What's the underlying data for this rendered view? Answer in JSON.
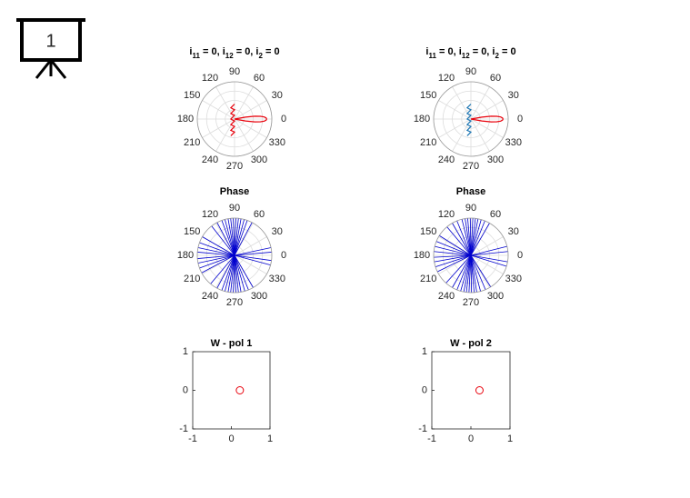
{
  "slide_number": "1",
  "chart_data": [
    {
      "type": "polar",
      "title": [
        "i",
        "11",
        " = 0, i",
        "12",
        " = 0, i",
        "2",
        " = 0"
      ],
      "rlim": [
        0,
        1
      ],
      "rticks": [
        0.25,
        0.5,
        0.75,
        1
      ],
      "thetaticks": [
        0,
        30,
        60,
        90,
        120,
        150,
        180,
        210,
        240,
        270,
        300,
        330
      ],
      "series": [
        {
          "color": "#e8000b",
          "theta": [
            340,
            350,
            352,
            354,
            356,
            358,
            0,
            2,
            4,
            6,
            8,
            10,
            20
          ],
          "r": [
            0,
            0.3,
            0.55,
            0.7,
            0.8,
            0.85,
            0.86,
            0.85,
            0.8,
            0.7,
            0.55,
            0.3,
            0
          ]
        },
        {
          "color": "#e8000b",
          "theta": [
            257.5,
            270,
            251.6,
            270,
            236.3,
            270,
            180,
            90,
            123.7,
            90,
            108.4,
            90
          ],
          "r": [
            0.46,
            0.35,
            0.32,
            0.2,
            0.18,
            0.05,
            0.1,
            0.1,
            0.18,
            0.25,
            0.32,
            0.4
          ]
        }
      ]
    },
    {
      "type": "polar",
      "title": [
        "i",
        "11",
        " = 0, i",
        "12",
        " = 0, i",
        "2",
        " = 0"
      ],
      "rlim": [
        0,
        1
      ],
      "rticks": [
        0.25,
        0.5,
        0.75,
        1
      ],
      "thetaticks": [
        0,
        30,
        60,
        90,
        120,
        150,
        180,
        210,
        240,
        270,
        300,
        330
      ],
      "series": [
        {
          "color": "#e8000b",
          "theta": [
            340,
            350,
            352,
            354,
            356,
            358,
            0,
            2,
            4,
            6,
            8,
            10,
            20
          ],
          "r": [
            0,
            0.3,
            0.55,
            0.7,
            0.8,
            0.85,
            0.86,
            0.85,
            0.8,
            0.7,
            0.55,
            0.3,
            0
          ]
        },
        {
          "color": "#1f77b4",
          "theta": [
            257.5,
            270,
            251.6,
            270,
            236.3,
            270,
            180,
            90,
            123.7,
            90,
            108.4,
            90
          ],
          "r": [
            0.46,
            0.35,
            0.32,
            0.2,
            0.18,
            0.05,
            0.1,
            0.1,
            0.18,
            0.25,
            0.32,
            0.4
          ]
        }
      ]
    },
    {
      "type": "polar-lines",
      "title": "Phase",
      "rlim": [
        0,
        1
      ],
      "rticks": [
        0.25,
        0.5,
        0.75,
        1
      ],
      "thetaticks": [
        0,
        30,
        60,
        90,
        120,
        150,
        180,
        210,
        240,
        270,
        300,
        330
      ],
      "series": [
        {
          "color": "#0000cd",
          "theta": [
            62,
            70,
            75,
            80,
            84,
            88,
            92,
            96,
            100,
            105,
            110,
            118,
            128,
            150,
            160,
            168,
            175,
            185,
            192,
            200,
            208,
            230,
            242,
            250,
            255,
            260,
            264,
            268,
            272,
            276,
            280,
            286,
            292,
            300,
            345,
            352,
            5,
            12
          ],
          "r": [
            1,
            1,
            1,
            1,
            1,
            1,
            1,
            1,
            1,
            1,
            1,
            1,
            1,
            1,
            1,
            1,
            1,
            1,
            1,
            1,
            1,
            1,
            1,
            1,
            1,
            1,
            1,
            1,
            1,
            1,
            1,
            1,
            1,
            1,
            1,
            1,
            1,
            1
          ]
        }
      ]
    },
    {
      "type": "polar-lines",
      "title": "Phase",
      "rlim": [
        0,
        1
      ],
      "rticks": [
        0.25,
        0.5,
        0.75,
        1
      ],
      "thetaticks": [
        0,
        30,
        60,
        90,
        120,
        150,
        180,
        210,
        240,
        270,
        300,
        330
      ],
      "series": [
        {
          "color": "#0000cd",
          "theta": [
            60,
            68,
            74,
            79,
            83,
            87,
            91,
            95,
            99,
            104,
            112,
            120,
            130,
            148,
            158,
            166,
            174,
            183,
            190,
            198,
            206,
            228,
            240,
            248,
            254,
            259,
            263,
            267,
            271,
            275,
            279,
            285,
            293,
            302,
            343,
            350,
            6,
            14
          ],
          "r": [
            1,
            1,
            1,
            1,
            1,
            1,
            1,
            1,
            1,
            1,
            1,
            1,
            1,
            1,
            1,
            1,
            1,
            1,
            1,
            1,
            1,
            1,
            1,
            1,
            1,
            1,
            1,
            1,
            1,
            1,
            1,
            1,
            1,
            1,
            1,
            1,
            1,
            1
          ]
        }
      ]
    },
    {
      "type": "scatter",
      "title": "W - pol 1",
      "xlim": [
        -1,
        1
      ],
      "ylim": [
        -1,
        1
      ],
      "xticks": [
        -1,
        0,
        1
      ],
      "yticks": [
        -1,
        0,
        1
      ],
      "series": [
        {
          "color": "#e8000b",
          "x": [
            0.22
          ],
          "y": [
            0
          ]
        }
      ]
    },
    {
      "type": "scatter",
      "title": "W - pol 2",
      "xlim": [
        -1,
        1
      ],
      "ylim": [
        -1,
        1
      ],
      "xticks": [
        -1,
        0,
        1
      ],
      "yticks": [
        -1,
        0,
        1
      ],
      "series": [
        {
          "color": "#e8000b",
          "x": [
            0.22
          ],
          "y": [
            0
          ]
        }
      ]
    }
  ]
}
